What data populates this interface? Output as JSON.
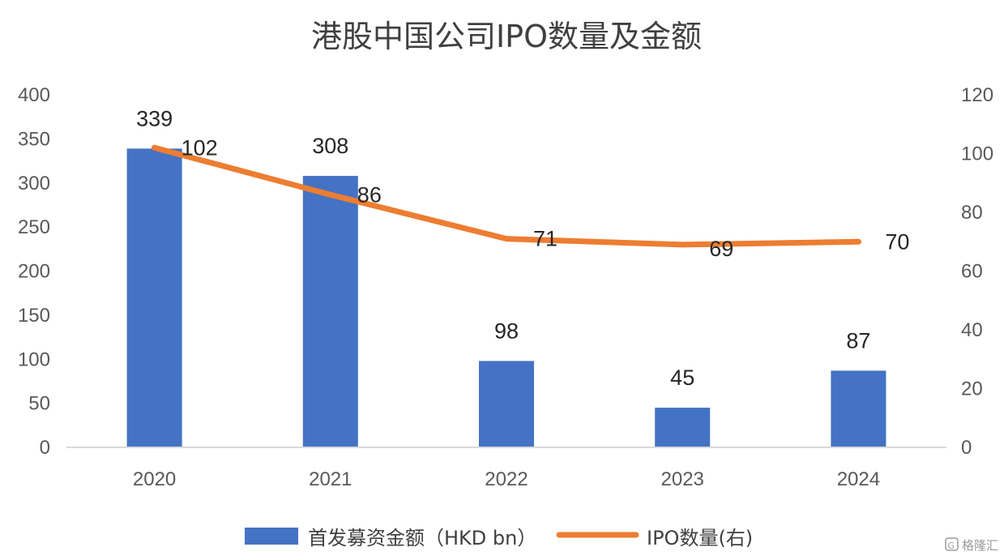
{
  "chart_data": {
    "type": "bar",
    "title": "港股中国公司IPO数量及金额",
    "categories": [
      "2020",
      "2021",
      "2022",
      "2023",
      "2024"
    ],
    "series": [
      {
        "name": "首发募资金额（HKD bn）",
        "type": "bar",
        "axis": "left",
        "values": [
          339,
          308,
          98,
          45,
          87
        ],
        "color": "#4472C4"
      },
      {
        "name": "IPO数量(右)",
        "type": "line",
        "axis": "right",
        "values": [
          102,
          86,
          71,
          69,
          70
        ],
        "color": "#ED7D31"
      }
    ],
    "y_left": {
      "min": 0,
      "max": 400,
      "ticks": [
        "0",
        "50",
        "100",
        "150",
        "200",
        "250",
        "300",
        "350",
        "400"
      ]
    },
    "y_right": {
      "min": 0,
      "max": 120,
      "ticks": [
        "0",
        "20",
        "40",
        "60",
        "80",
        "100",
        "120"
      ]
    },
    "grid": false,
    "legend": "bottom",
    "baseline_color": "#D9D9D9"
  },
  "watermark": {
    "text": "格隆汇",
    "icon": "logo-g-icon"
  }
}
